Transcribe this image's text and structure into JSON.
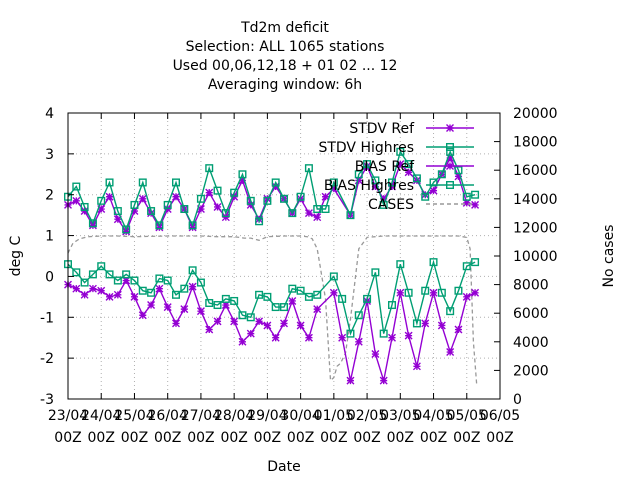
{
  "chart_data": {
    "type": "line",
    "title_lines": [
      "Td2m deficit",
      "Selection: ALL    1065 stations",
      "Used  00,06,12,18  + 01 02 ... 12",
      "Averaging window:  6h"
    ],
    "xlabel": "Date",
    "ylabel": "deg C",
    "y2label": "No cases",
    "x_ticks": [
      {
        "line1": "23/04",
        "line2": "00Z"
      },
      {
        "line1": "24/04",
        "line2": "00Z"
      },
      {
        "line1": "25/04",
        "line2": "00Z"
      },
      {
        "line1": "26/04",
        "line2": "00Z"
      },
      {
        "line1": "27/04",
        "line2": "00Z"
      },
      {
        "line1": "28/04",
        "line2": "00Z"
      },
      {
        "line1": "29/04",
        "line2": "00Z"
      },
      {
        "line1": "30/04",
        "line2": "00Z"
      },
      {
        "line1": "01/05",
        "line2": "00Z"
      },
      {
        "line1": "02/05",
        "line2": "00Z"
      },
      {
        "line1": "03/05",
        "line2": "00Z"
      },
      {
        "line1": "04/05",
        "line2": "00Z"
      },
      {
        "line1": "05/05",
        "line2": "00Z"
      },
      {
        "line1": "06/05",
        "line2": "00Z"
      }
    ],
    "xlim": [
      0,
      13
    ],
    "ylim": [
      -3,
      4
    ],
    "y_ticks": [
      -3,
      -2,
      -1,
      0,
      1,
      2,
      3,
      4
    ],
    "y2lim": [
      0,
      20000
    ],
    "y2_ticks": [
      0,
      2000,
      4000,
      6000,
      8000,
      10000,
      12000,
      14000,
      16000,
      18000,
      20000
    ],
    "grid": true,
    "legend_position": "top-right",
    "series": [
      {
        "name": "STDV Ref",
        "color": "#9400d3",
        "marker": "star",
        "axis": "y1",
        "x": [
          0,
          0.25,
          0.5,
          0.75,
          1,
          1.25,
          1.5,
          1.75,
          2,
          2.25,
          2.5,
          2.75,
          3,
          3.25,
          3.5,
          3.75,
          4,
          4.25,
          4.5,
          4.75,
          5,
          5.25,
          5.5,
          5.75,
          6,
          6.25,
          6.5,
          6.75,
          7,
          7.25,
          7.5,
          7.75,
          8,
          8.5,
          8.75,
          9,
          9.25,
          9.5,
          9.75,
          10,
          10.25,
          10.5,
          10.75,
          11,
          11.25,
          11.5,
          11.75,
          12,
          12.25
        ],
        "y": [
          1.75,
          1.85,
          1.6,
          1.25,
          1.65,
          1.95,
          1.4,
          1.1,
          1.6,
          1.9,
          1.55,
          1.2,
          1.65,
          1.95,
          1.65,
          1.2,
          1.65,
          2.05,
          1.7,
          1.45,
          1.95,
          2.35,
          1.75,
          1.4,
          1.9,
          2.2,
          1.9,
          1.55,
          1.9,
          1.55,
          1.45,
          1.95,
          2.15,
          1.5,
          2.35,
          2.7,
          2.2,
          1.9,
          2.2,
          2.75,
          2.55,
          2.35,
          2.0,
          2.1,
          2.5,
          2.9,
          2.45,
          1.8,
          1.75
        ]
      },
      {
        "name": "STDV Highres",
        "color": "#009e73",
        "marker": "square",
        "axis": "y1",
        "x": [
          0,
          0.25,
          0.5,
          0.75,
          1,
          1.25,
          1.5,
          1.75,
          2,
          2.25,
          2.5,
          2.75,
          3,
          3.25,
          3.5,
          3.75,
          4,
          4.25,
          4.5,
          4.75,
          5,
          5.25,
          5.5,
          5.75,
          6,
          6.25,
          6.5,
          6.75,
          7,
          7.25,
          7.5,
          7.75,
          8,
          8.5,
          8.75,
          9,
          9.25,
          9.5,
          9.75,
          10,
          10.25,
          10.5,
          10.75,
          11,
          11.25,
          11.5,
          11.75,
          12,
          12.25
        ],
        "y": [
          1.95,
          2.2,
          1.7,
          1.3,
          1.85,
          2.3,
          1.6,
          1.15,
          1.75,
          2.3,
          1.6,
          1.25,
          1.75,
          2.3,
          1.65,
          1.25,
          1.9,
          2.65,
          2.1,
          1.55,
          2.05,
          2.5,
          1.85,
          1.35,
          1.85,
          2.3,
          1.9,
          1.55,
          1.95,
          2.65,
          1.65,
          1.65,
          2.3,
          1.5,
          2.5,
          2.75,
          2.35,
          1.75,
          2.3,
          3.05,
          2.75,
          2.4,
          1.95,
          2.3,
          2.5,
          3.05,
          2.6,
          1.95,
          2.0
        ]
      },
      {
        "name": "BIAS Ref",
        "color": "#9400d3",
        "marker": "star",
        "axis": "y1",
        "x": [
          0,
          0.25,
          0.5,
          0.75,
          1,
          1.25,
          1.5,
          1.75,
          2,
          2.25,
          2.5,
          2.75,
          3,
          3.25,
          3.5,
          3.75,
          4,
          4.25,
          4.5,
          4.75,
          5,
          5.25,
          5.5,
          5.75,
          6,
          6.25,
          6.5,
          6.75,
          7,
          7.25,
          7.5,
          8,
          8.25,
          8.5,
          8.75,
          9,
          9.25,
          9.5,
          9.75,
          10,
          10.25,
          10.5,
          10.75,
          11,
          11.25,
          11.5,
          11.75,
          12,
          12.25
        ],
        "y": [
          -0.2,
          -0.3,
          -0.45,
          -0.3,
          -0.35,
          -0.5,
          -0.45,
          -0.1,
          -0.5,
          -0.95,
          -0.7,
          -0.3,
          -0.75,
          -1.15,
          -0.8,
          -0.25,
          -0.85,
          -1.3,
          -1.1,
          -0.7,
          -1.1,
          -1.6,
          -1.4,
          -1.1,
          -1.2,
          -1.5,
          -1.15,
          -0.6,
          -1.2,
          -1.5,
          -0.8,
          -0.4,
          -1.5,
          -2.55,
          -1.6,
          -0.6,
          -1.9,
          -2.55,
          -1.5,
          -0.4,
          -1.45,
          -2.2,
          -1.15,
          -0.4,
          -1.2,
          -1.85,
          -1.3,
          -0.5,
          -0.4
        ]
      },
      {
        "name": "BIAS Highres",
        "color": "#009e73",
        "marker": "square",
        "axis": "y1",
        "x": [
          0,
          0.25,
          0.5,
          0.75,
          1,
          1.25,
          1.5,
          1.75,
          2,
          2.25,
          2.5,
          2.75,
          3,
          3.25,
          3.5,
          3.75,
          4,
          4.25,
          4.5,
          4.75,
          5,
          5.25,
          5.5,
          5.75,
          6,
          6.25,
          6.5,
          6.75,
          7,
          7.25,
          7.5,
          8,
          8.25,
          8.5,
          8.75,
          9,
          9.25,
          9.5,
          9.75,
          10,
          10.25,
          10.5,
          10.75,
          11,
          11.25,
          11.5,
          11.75,
          12,
          12.25
        ],
        "y": [
          0.3,
          0.1,
          -0.15,
          0.05,
          0.25,
          0.05,
          -0.1,
          0.05,
          -0.1,
          -0.35,
          -0.4,
          -0.05,
          -0.1,
          -0.45,
          -0.3,
          0.15,
          -0.15,
          -0.65,
          -0.7,
          -0.55,
          -0.6,
          -0.95,
          -1.0,
          -0.45,
          -0.5,
          -0.75,
          -0.75,
          -0.3,
          -0.35,
          -0.5,
          -0.45,
          0.0,
          -0.55,
          -1.4,
          -0.95,
          -0.55,
          0.1,
          -1.4,
          -0.7,
          0.3,
          -0.4,
          -1.15,
          -0.35,
          0.35,
          -0.4,
          -0.85,
          -0.35,
          0.25,
          0.35
        ]
      },
      {
        "name": "CASES",
        "color": "#999999",
        "marker": "none",
        "dash": "dashed",
        "axis": "y2",
        "x": [
          0,
          0.15,
          0.35,
          0.6,
          1,
          1.5,
          2,
          3,
          4,
          4.5,
          5,
          5.3,
          5.5,
          5.75,
          6,
          6.5,
          7,
          7.2,
          7.35,
          7.5,
          7.6,
          7.75,
          7.9,
          8,
          8.1,
          8.2,
          8.35,
          8.5,
          8.75,
          9,
          9.5,
          10,
          10.5,
          11,
          11.5,
          11.75,
          12,
          12.1,
          12.2,
          12.3
        ],
        "y": [
          10200,
          10900,
          11200,
          11350,
          11400,
          11400,
          11350,
          11400,
          11400,
          11350,
          11350,
          11250,
          11250,
          11100,
          11350,
          11400,
          11400,
          11350,
          11200,
          10500,
          9100,
          7000,
          1300,
          1500,
          2300,
          2500,
          3200,
          5600,
          10500,
          11300,
          11400,
          11400,
          11400,
          11400,
          11400,
          11400,
          11300,
          10500,
          4000,
          1000
        ]
      }
    ]
  }
}
